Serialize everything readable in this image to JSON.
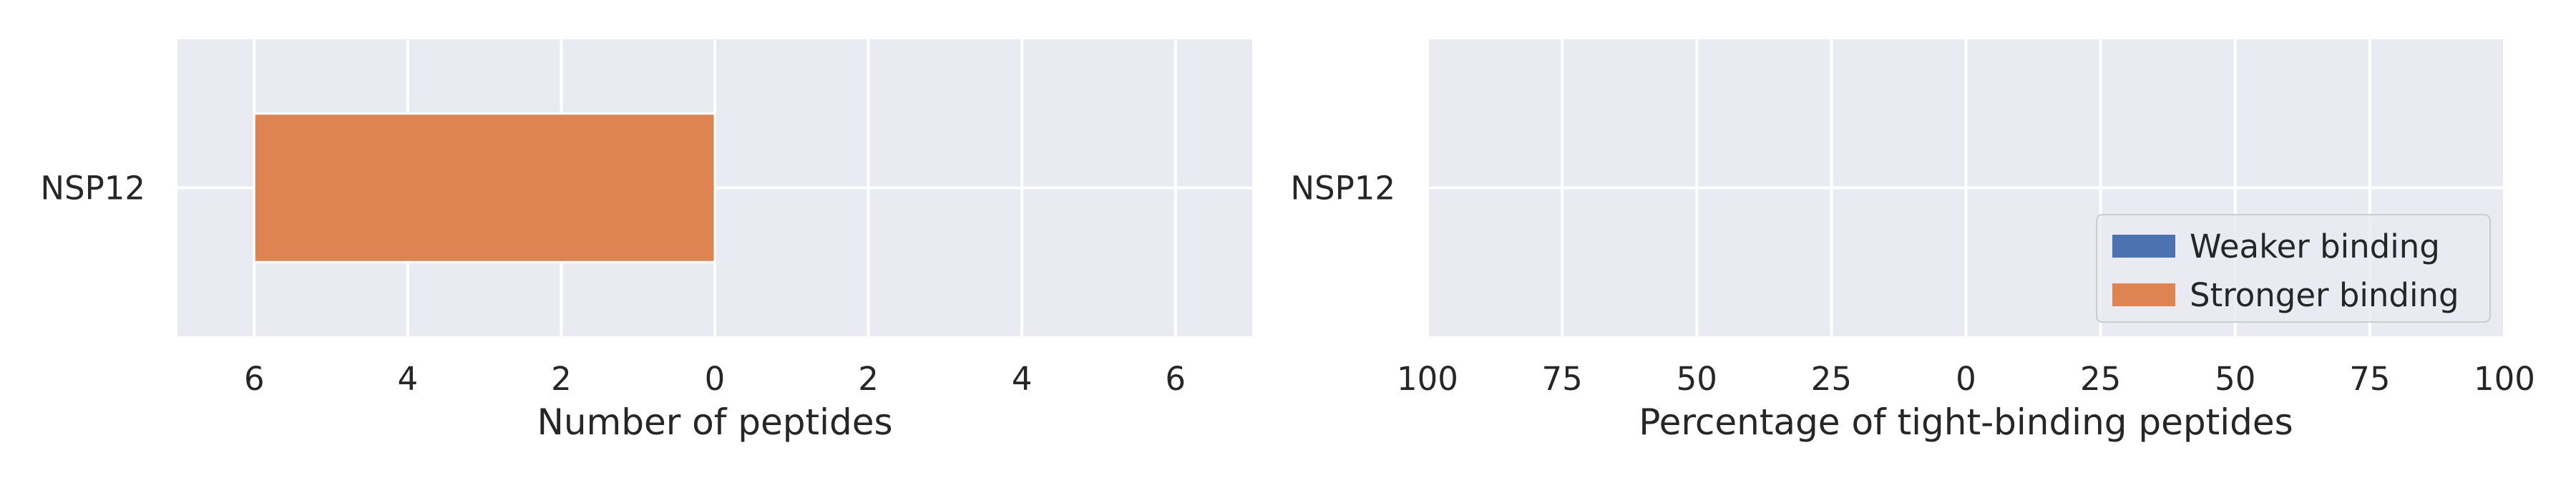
{
  "chart_data": [
    {
      "type": "bar",
      "orientation": "horizontal",
      "diverging": true,
      "categories": [
        "NSP12"
      ],
      "xlabel": "Number of peptides",
      "ylabel": "",
      "xlim": [
        -7,
        7
      ],
      "xticks": [
        -6,
        -4,
        -2,
        0,
        2,
        4,
        6
      ],
      "xtick_labels": [
        "6",
        "4",
        "2",
        "0",
        "2",
        "4",
        "6"
      ],
      "grid": true,
      "series": [
        {
          "name": "Weaker binding",
          "values": [
            0
          ],
          "color": "#4c72b0"
        },
        {
          "name": "Stronger binding",
          "values": [
            -6
          ],
          "color": "#dd8452"
        }
      ]
    },
    {
      "type": "bar",
      "orientation": "horizontal",
      "diverging": true,
      "categories": [
        "NSP12"
      ],
      "xlabel": "Percentage of tight-binding peptides",
      "ylabel": "",
      "xlim": [
        -100,
        100
      ],
      "xticks": [
        -100,
        -75,
        -50,
        -25,
        0,
        25,
        50,
        75,
        100
      ],
      "xtick_labels": [
        "100",
        "75",
        "50",
        "25",
        "0",
        "25",
        "50",
        "75",
        "100"
      ],
      "grid": true,
      "legend": {
        "placement": "lower-right",
        "entries": [
          {
            "label": "Weaker binding",
            "color": "#4c72b0"
          },
          {
            "label": "Stronger binding",
            "color": "#dd8452"
          }
        ]
      },
      "series": [
        {
          "name": "Weaker binding",
          "values": [
            0
          ],
          "color": "#4c72b0"
        },
        {
          "name": "Stronger binding",
          "values": [
            0
          ],
          "color": "#dd8452"
        }
      ]
    }
  ]
}
